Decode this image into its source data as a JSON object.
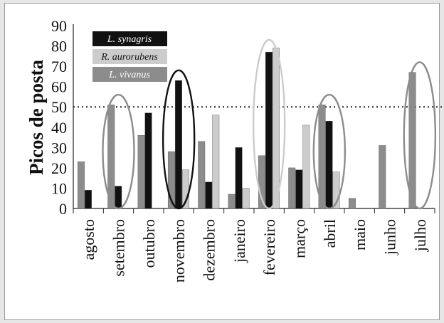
{
  "chart_data": {
    "type": "bar",
    "title": "",
    "xlabel": "",
    "ylabel": "Picos de posta",
    "ylim": [
      0,
      90
    ],
    "yticks": [
      0,
      10,
      20,
      30,
      40,
      50,
      60,
      70,
      80,
      90
    ],
    "grid": false,
    "legend_position": "top-left",
    "reference_line": {
      "y": 50,
      "style": "dotted"
    },
    "categories": [
      "agosto",
      "setembro",
      "outubro",
      "novembro",
      "dezembro",
      "janeiro",
      "fevereiro",
      "março",
      "abril",
      "maio",
      "junho",
      "julho"
    ],
    "series": [
      {
        "name": "L. vivanus",
        "color": "#8c8c8c",
        "values": [
          23,
          51,
          36,
          28,
          33,
          7,
          26,
          20,
          51,
          5,
          31,
          67
        ]
      },
      {
        "name": "L. synagris",
        "color": "#111111",
        "values": [
          9,
          11,
          47,
          63,
          13,
          30,
          77,
          19,
          43,
          null,
          null,
          null
        ]
      },
      {
        "name": "R. aurorubens",
        "color": "#cccccc",
        "values": [
          null,
          null,
          null,
          19,
          46,
          10,
          79,
          41,
          18,
          null,
          null,
          null
        ]
      }
    ],
    "legend_order": [
      "L. synagris",
      "R. aurorubens",
      "L. vivanus"
    ],
    "highlight_ellipses": [
      {
        "category": "setembro",
        "color": "#8c8c8c"
      },
      {
        "category": "novembro",
        "color": "#111111"
      },
      {
        "category": "fevereiro",
        "color": "#cccccc"
      },
      {
        "category": "abril",
        "color": "#8c8c8c"
      },
      {
        "category": "julho",
        "color": "#8c8c8c"
      }
    ]
  }
}
